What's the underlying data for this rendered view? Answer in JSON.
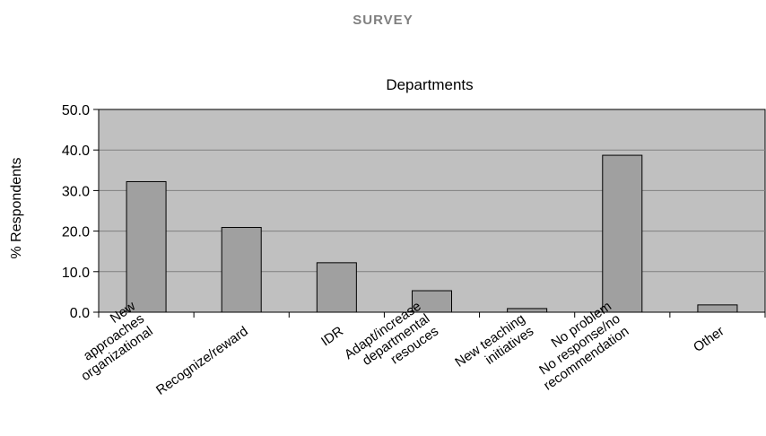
{
  "header": {
    "title": "SURVEY"
  },
  "chart_data": {
    "type": "bar",
    "title": "Departments",
    "ylabel": "% Respondents",
    "xlabel": "",
    "ylim": [
      0,
      50
    ],
    "yticks": [
      "0.0",
      "10.0",
      "20.0",
      "30.0",
      "40.0",
      "50.0"
    ],
    "grid": true,
    "categories": [
      [
        "New",
        "approaches",
        "organizational"
      ],
      [
        "Recognize/reward"
      ],
      [
        "IDR"
      ],
      [
        "Adapt/increase",
        "departmental",
        "resouces"
      ],
      [
        "New teaching",
        "initiatives"
      ],
      [
        "No problem",
        "No response/no",
        "recommendation"
      ],
      [
        "Other"
      ]
    ],
    "values": [
      32.2,
      20.9,
      12.2,
      5.3,
      0.9,
      38.7,
      1.8
    ],
    "colors": {
      "plot_bg": "#c0c0c0",
      "bar": "#a0a0a0",
      "bar_border": "#000000",
      "grid": "#808080"
    }
  }
}
